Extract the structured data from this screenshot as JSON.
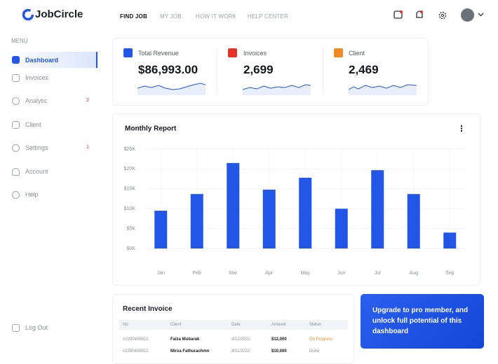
{
  "header": {
    "logo": "JobCircle",
    "nav": [
      "FIND JOB",
      "MY JOB",
      "HOW IT WORK",
      "HELP CENTER"
    ]
  },
  "sidebar": {
    "menu_label": "MENU",
    "items": [
      {
        "label": "Dashboard"
      },
      {
        "label": "Invoices"
      },
      {
        "label": "Analytic",
        "badge": 2
      },
      {
        "label": "Client"
      },
      {
        "label": "Settings",
        "badge": 1
      },
      {
        "label": "Account"
      },
      {
        "label": "Help"
      }
    ],
    "logout": "Log Out"
  },
  "stats": [
    {
      "label": "Total Revenue",
      "value": "$86,993.00"
    },
    {
      "label": "Invoices",
      "value": "2,699"
    },
    {
      "label": "Client",
      "value": "2,469"
    }
  ],
  "chart_data": {
    "type": "bar",
    "title": "Monthly Report",
    "categories": [
      "Jan",
      "Feb",
      "Mar",
      "Apr",
      "May",
      "Jun",
      "Jul",
      "Aug",
      "Sep"
    ],
    "values": [
      9500,
      13700,
      21500,
      14800,
      17800,
      10000,
      19700,
      13700,
      4000
    ],
    "color": "#2156e6",
    "ylim": [
      0,
      25000
    ],
    "yticks": [
      {
        "value": 0,
        "label": "$0K"
      },
      {
        "value": 5000,
        "label": "$5K"
      },
      {
        "value": 10000,
        "label": "$10K"
      },
      {
        "value": 15000,
        "label": "$15K"
      },
      {
        "value": 20000,
        "label": "$20K"
      },
      {
        "value": 25000,
        "label": "$25K"
      }
    ],
    "grid": true
  },
  "invoices": {
    "title": "Recent Invoice",
    "columns": [
      "No",
      "Client",
      "Date",
      "Amount",
      "Status"
    ],
    "rows": [
      [
        "#2290408912",
        "Faiza Mubarak",
        "4/12/2022",
        "$12,000",
        "On Progress"
      ],
      [
        "#2290408912",
        "Mirxa Fathurachmn",
        "4/11/2022",
        "$10,000",
        "Done"
      ]
    ]
  },
  "upgrade": {
    "text": "Upgrade to pro member, and unlock full potential of this dashboard"
  }
}
